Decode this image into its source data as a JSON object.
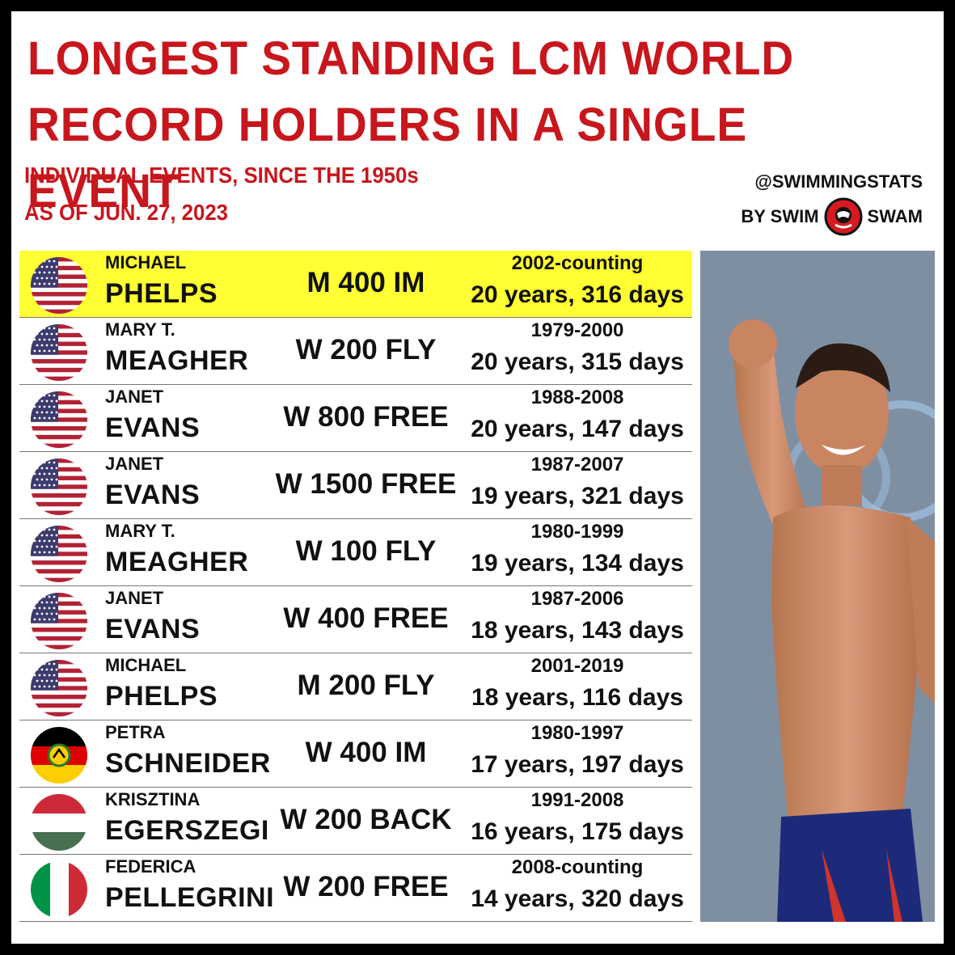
{
  "title": "LONGEST STANDING LCM WORLD RECORD HOLDERS IN A SINGLE EVENT",
  "subtitle_1": "INDIVIDUAL EVENTS, SINCE THE 1950s",
  "subtitle_2": "AS OF JUN. 27, 2023",
  "brand": {
    "handle": "@SWIMMINGSTATS",
    "by": "BY SWIM",
    "by2": "SWAM",
    "logo_icon": "swimswam-logo-icon"
  },
  "colors": {
    "title": "#c8161d",
    "highlight": "#ffff33"
  },
  "records": [
    {
      "first": "MICHAEL",
      "last": "PHELPS",
      "event": "M 400 IM",
      "span": "2002-counting",
      "duration": "20 years, 316 days",
      "flag": "usa-flag-icon",
      "highlight": true
    },
    {
      "first": "MARY T.",
      "last": "MEAGHER",
      "event": "W 200 FLY",
      "span": "1979-2000",
      "duration": "20 years, 315 days",
      "flag": "usa-flag-icon",
      "highlight": false
    },
    {
      "first": "JANET",
      "last": "EVANS",
      "event": "W 800 FREE",
      "span": "1988-2008",
      "duration": "20 years, 147 days",
      "flag": "usa-flag-icon",
      "highlight": false
    },
    {
      "first": "JANET",
      "last": "EVANS",
      "event": "W 1500 FREE",
      "span": "1987-2007",
      "duration": "19 years, 321 days",
      "flag": "usa-flag-icon",
      "highlight": false
    },
    {
      "first": "MARY T.",
      "last": "MEAGHER",
      "event": "W 100 FLY",
      "span": "1980-1999",
      "duration": "19 years, 134 days",
      "flag": "usa-flag-icon",
      "highlight": false
    },
    {
      "first": "JANET",
      "last": "EVANS",
      "event": "W 400 FREE",
      "span": "1987-2006",
      "duration": "18 years, 143 days",
      "flag": "usa-flag-icon",
      "highlight": false
    },
    {
      "first": "MICHAEL",
      "last": "PHELPS",
      "event": "M 200 FLY",
      "span": "2001-2019",
      "duration": "18 years, 116 days",
      "flag": "usa-flag-icon",
      "highlight": false
    },
    {
      "first": "PETRA",
      "last": "SCHNEIDER",
      "event": "W 400 IM",
      "span": "1980-1997",
      "duration": "17 years, 197 days",
      "flag": "east-germany-flag-icon",
      "highlight": false
    },
    {
      "first": "KRISZTINA",
      "last": "EGERSZEGI",
      "event": "W 200 BACK",
      "span": "1991-2008",
      "duration": "16 years, 175 days",
      "flag": "hungary-flag-icon",
      "highlight": false
    },
    {
      "first": "FEDERICA",
      "last": "PELLEGRINI",
      "event": "W 200 FREE",
      "span": "2008-counting",
      "duration": "14 years, 320 days",
      "flag": "italy-flag-icon",
      "highlight": false
    }
  ],
  "photo": {
    "icon": "celebrating-swimmer-photo"
  }
}
